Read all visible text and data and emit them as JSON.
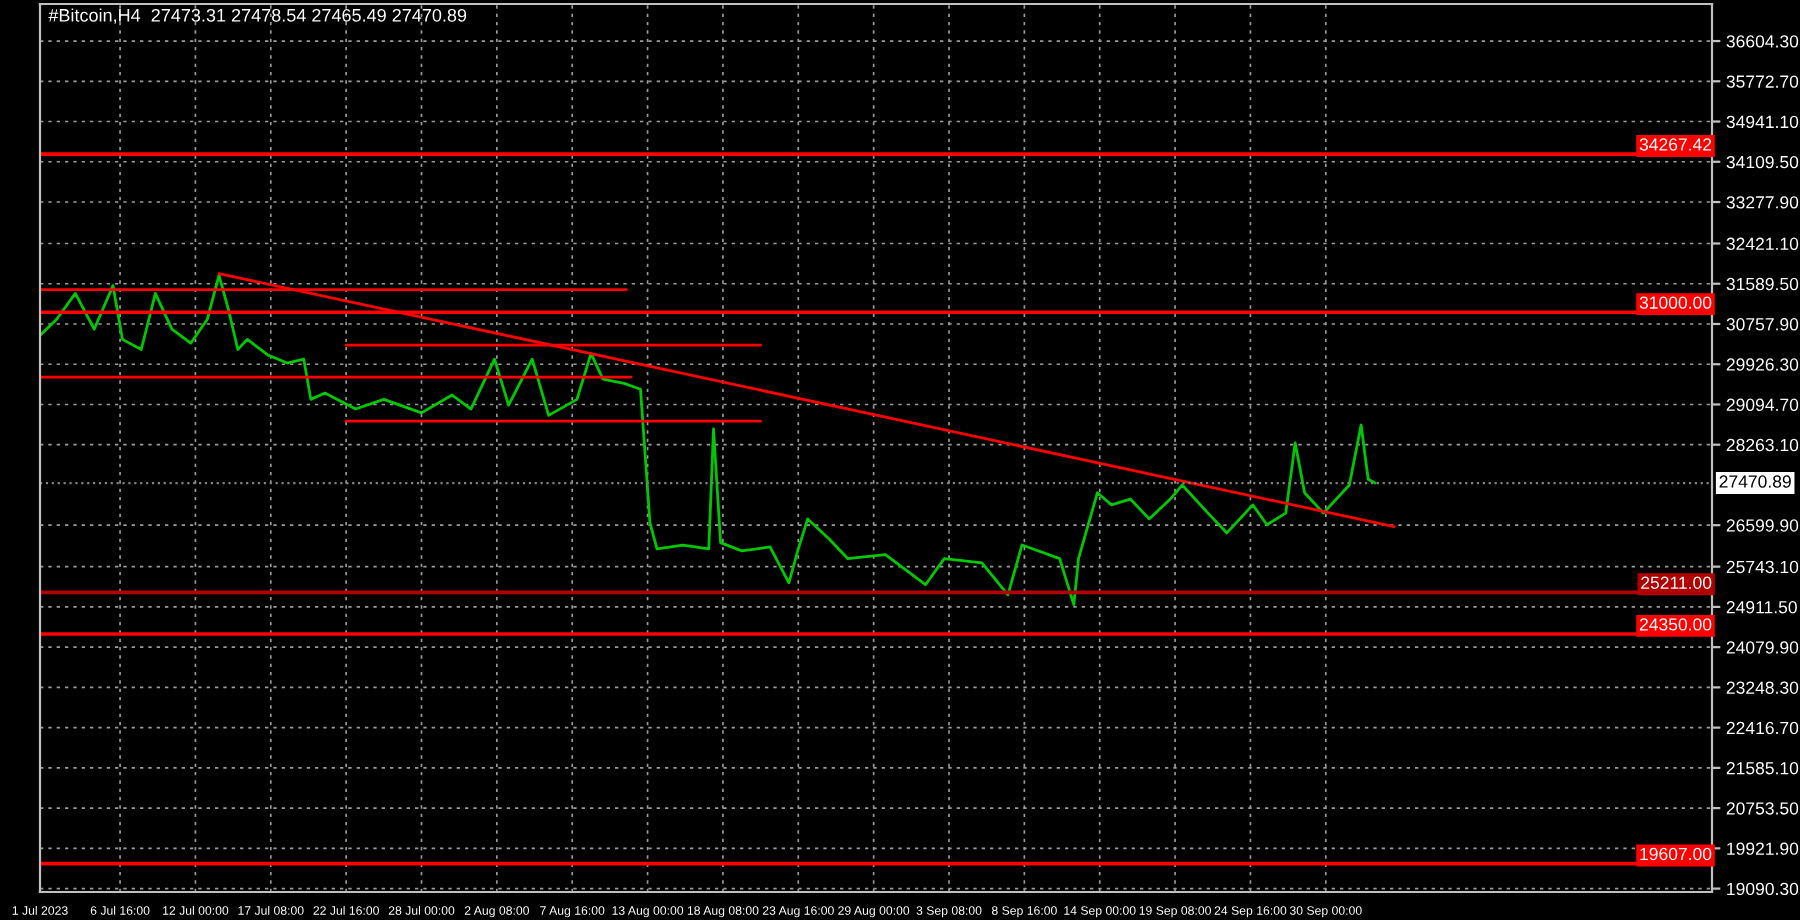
{
  "chart_data": {
    "type": "line",
    "title": "#Bitcoin,H4  27473.31 27478.54 27465.49 27470.89",
    "xlim": [
      "2023-07-01T00:00",
      "2023-10-27T08:00"
    ],
    "ylim": [
      19020,
      37370
    ],
    "xticks": [
      {
        "value": "2023-07-01T00:00",
        "label": "1 Jul 2023"
      },
      {
        "value": "2023-07-06T16:00",
        "label": "6 Jul 16:00"
      },
      {
        "value": "2023-07-12T00:00",
        "label": "12 Jul 00:00"
      },
      {
        "value": "2023-07-17T08:00",
        "label": "17 Jul 08:00"
      },
      {
        "value": "2023-07-22T16:00",
        "label": "22 Jul 16:00"
      },
      {
        "value": "2023-07-28T00:00",
        "label": "28 Jul 00:00"
      },
      {
        "value": "2023-08-02T08:00",
        "label": "2 Aug 08:00"
      },
      {
        "value": "2023-08-07T16:00",
        "label": "7 Aug 16:00"
      },
      {
        "value": "2023-08-13T00:00",
        "label": "13 Aug 00:00"
      },
      {
        "value": "2023-08-18T08:00",
        "label": "18 Aug 08:00"
      },
      {
        "value": "2023-08-23T16:00",
        "label": "23 Aug 16:00"
      },
      {
        "value": "2023-08-29T00:00",
        "label": "29 Aug 00:00"
      },
      {
        "value": "2023-09-03T08:00",
        "label": "3 Sep 08:00"
      },
      {
        "value": "2023-09-08T16:00",
        "label": "8 Sep 16:00"
      },
      {
        "value": "2023-09-14T00:00",
        "label": "14 Sep 00:00"
      },
      {
        "value": "2023-09-19T08:00",
        "label": "19 Sep 08:00"
      },
      {
        "value": "2023-09-24T16:00",
        "label": "24 Sep 16:00"
      },
      {
        "value": "2023-09-30T00:00",
        "label": "30 Sep 00:00"
      }
    ],
    "yticks": [
      {
        "value": 36604.3,
        "label": "36604.30"
      },
      {
        "value": 35772.7,
        "label": "35772.70"
      },
      {
        "value": 34941.1,
        "label": "34941.10"
      },
      {
        "value": 34109.5,
        "label": "34109.50"
      },
      {
        "value": 33277.9,
        "label": "33277.90"
      },
      {
        "value": 32421.1,
        "label": "32421.10"
      },
      {
        "value": 31589.5,
        "label": "31589.50"
      },
      {
        "value": 30757.9,
        "label": "30757.90"
      },
      {
        "value": 29926.3,
        "label": "29926.30"
      },
      {
        "value": 29094.7,
        "label": "29094.70"
      },
      {
        "value": 28263.1,
        "label": "28263.10"
      },
      {
        "value": 26599.9,
        "label": "26599.90"
      },
      {
        "value": 25743.1,
        "label": "25743.10"
      },
      {
        "value": 24911.5,
        "label": "24911.50"
      },
      {
        "value": 24079.9,
        "label": "24079.90"
      },
      {
        "value": 23248.3,
        "label": "23248.30"
      },
      {
        "value": 22416.7,
        "label": "22416.70"
      },
      {
        "value": 21585.1,
        "label": "21585.10"
      },
      {
        "value": 20753.5,
        "label": "20753.50"
      },
      {
        "value": 19921.9,
        "label": "19921.90"
      },
      {
        "value": 19090.3,
        "label": "19090.30"
      }
    ],
    "grid": true,
    "marker": "none",
    "line_style": "solid",
    "series": [
      {
        "color": "#00c800",
        "x": [
          "2023-07-01T00:00",
          "2023-07-02T04:00",
          "2023-07-03T12:00",
          "2023-07-04T20:00",
          "2023-07-06T04:00",
          "2023-07-06T20:00",
          "2023-07-08T04:00",
          "2023-07-09T04:00",
          "2023-07-10T08:00",
          "2023-07-11T16:00",
          "2023-07-12T20:00",
          "2023-07-13T16:00",
          "2023-07-14T08:00",
          "2023-07-15T00:00",
          "2023-07-15T16:00",
          "2023-07-17T04:00",
          "2023-07-18T12:00",
          "2023-07-19T16:00",
          "2023-07-20T04:00",
          "2023-07-21T04:00",
          "2023-07-23T08:00",
          "2023-07-25T08:00",
          "2023-07-28T00:00",
          "2023-07-30T04:00",
          "2023-07-31T12:00",
          "2023-08-02T04:00",
          "2023-08-03T04:00",
          "2023-08-04T20:00",
          "2023-08-06T00:00",
          "2023-08-08T00:00",
          "2023-08-09T00:00",
          "2023-08-09T20:00",
          "2023-08-11T08:00",
          "2023-08-12T12:00",
          "2023-08-13T04:00",
          "2023-08-13T16:00",
          "2023-08-15T12:00",
          "2023-08-17T08:00",
          "2023-08-17T16:00",
          "2023-08-18T04:00",
          "2023-08-19T16:00",
          "2023-08-21T16:00",
          "2023-08-23T00:00",
          "2023-08-23T16:00",
          "2023-08-24T08:00",
          "2023-08-25T20:00",
          "2023-08-27T04:00",
          "2023-08-29T20:00",
          "2023-09-01T16:00",
          "2023-09-03T00:00",
          "2023-09-05T16:00",
          "2023-09-07T12:00",
          "2023-09-08T12:00",
          "2023-09-11T04:00",
          "2023-09-12T04:00",
          "2023-09-12T12:00",
          "2023-09-13T20:00",
          "2023-09-14T20:00",
          "2023-09-16T04:00",
          "2023-09-17T12:00",
          "2023-09-19T00:00",
          "2023-09-19T20:00",
          "2023-09-21T16:00",
          "2023-09-23T00:00",
          "2023-09-24T20:00",
          "2023-09-25T20:00",
          "2023-09-27T04:00",
          "2023-09-27T20:00",
          "2023-09-28T12:00",
          "2023-09-29T20:00",
          "2023-10-01T16:00",
          "2023-10-02T12:00",
          "2023-10-03T00:00",
          "2023-10-03T12:00"
        ],
        "values": [
          30520,
          30850,
          31390,
          30650,
          31550,
          30440,
          30230,
          31390,
          30650,
          30360,
          30850,
          31760,
          31060,
          30230,
          30440,
          30110,
          29950,
          30030,
          29200,
          29330,
          29000,
          29200,
          28920,
          29290,
          29000,
          30030,
          29080,
          30030,
          28870,
          29200,
          30150,
          29620,
          29530,
          29410,
          26650,
          26110,
          26190,
          26110,
          28590,
          26240,
          26070,
          26150,
          25410,
          26110,
          26730,
          26320,
          25910,
          25990,
          25370,
          25910,
          25820,
          25160,
          26190,
          25910,
          24960,
          25910,
          27270,
          27020,
          27140,
          26730,
          27140,
          27430,
          26850,
          26440,
          27020,
          26610,
          26850,
          28300,
          27270,
          26850,
          27430,
          28670,
          27550,
          27470
        ]
      },
      {
        "color": "#ff0000",
        "x": [
          "2023-07-13T16:00",
          "2023-10-04T20:00"
        ],
        "values": [
          31800,
          26570
        ]
      },
      {
        "color": "#ff0000",
        "x": [
          "2023-07-01T00:00",
          "2023-08-11T12:00"
        ],
        "values": [
          31470,
          31470
        ]
      },
      {
        "color": "#ff0000",
        "x": [
          "2023-07-22T16:00",
          "2023-08-21T00:00"
        ],
        "values": [
          30320,
          30320
        ]
      },
      {
        "color": "#ff0000",
        "x": [
          "2023-07-01T00:00",
          "2023-08-11T20:00"
        ],
        "values": [
          29660,
          29660
        ]
      },
      {
        "color": "#ff0000",
        "x": [
          "2023-07-22T16:00",
          "2023-08-21T00:00"
        ],
        "values": [
          28750,
          28750
        ]
      }
    ],
    "ref_lines": [
      {
        "axis": "y",
        "value": 34267.42,
        "label": "34267.42",
        "color": "#ff0000"
      },
      {
        "axis": "y",
        "value": 31000.0,
        "label": "31000.00",
        "color": "#ff0000"
      },
      {
        "axis": "y",
        "value": 27470.89,
        "label": "27470.89",
        "color": "#808080",
        "line_style": "dotted"
      },
      {
        "axis": "y",
        "value": 25211.0,
        "label": "25211.00",
        "color": "#b00000"
      },
      {
        "axis": "y",
        "value": 24350.0,
        "label": "24350.00",
        "color": "#ff0000"
      },
      {
        "axis": "y",
        "value": 19607.0,
        "label": "19607.00",
        "color": "#ff0000"
      }
    ]
  }
}
